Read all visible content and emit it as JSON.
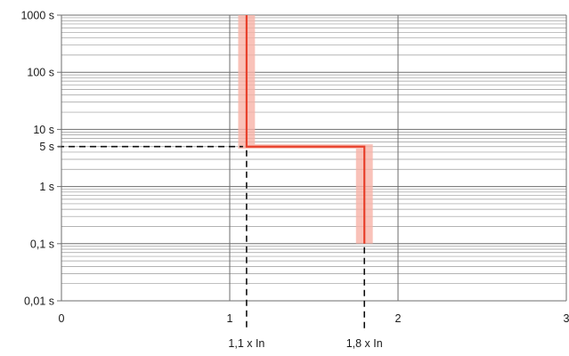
{
  "chart_data": {
    "type": "line",
    "title": "",
    "xlabel": "",
    "ylabel": "",
    "x_scale": "linear",
    "y_scale": "log",
    "xlim": [
      0,
      3
    ],
    "ylim": [
      0.01,
      1000
    ],
    "grid": true,
    "x_ticks": [
      {
        "value": 0,
        "label": "0"
      },
      {
        "value": 1,
        "label": "1"
      },
      {
        "value": 2,
        "label": "2"
      },
      {
        "value": 3,
        "label": "3"
      }
    ],
    "y_ticks": [
      {
        "value": 1000,
        "label": "1000 s"
      },
      {
        "value": 100,
        "label": "100 s"
      },
      {
        "value": 10,
        "label": "10 s"
      },
      {
        "value": 5,
        "label": "5 s"
      },
      {
        "value": 1,
        "label": "1 s"
      },
      {
        "value": 0.1,
        "label": "0,1 s"
      },
      {
        "value": 0.01,
        "label": "0,01 s"
      }
    ],
    "series": [
      {
        "color": "#e8412c",
        "x": [
          1.1,
          1.1,
          1.8,
          1.8
        ],
        "y": [
          1000,
          5,
          5,
          0.1
        ]
      }
    ],
    "tolerance_band": {
      "color": "#f7b3a7",
      "x": [
        1.05,
        1.15,
        1.15,
        1.85,
        1.85,
        1.75,
        1.75,
        1.05
      ],
      "y": [
        1000,
        1000,
        5.5,
        5.5,
        0.1,
        0.1,
        4.6,
        4.6
      ]
    },
    "annotations": [
      {
        "id": "ann-1-1",
        "label": "1,1 x In",
        "x": 1.1,
        "y": 5
      },
      {
        "id": "ann-1-8",
        "label": "1,8 x In",
        "x": 1.8,
        "y": 0.1
      }
    ],
    "reference_line": {
      "y": 5,
      "x_end": 1.1
    }
  }
}
